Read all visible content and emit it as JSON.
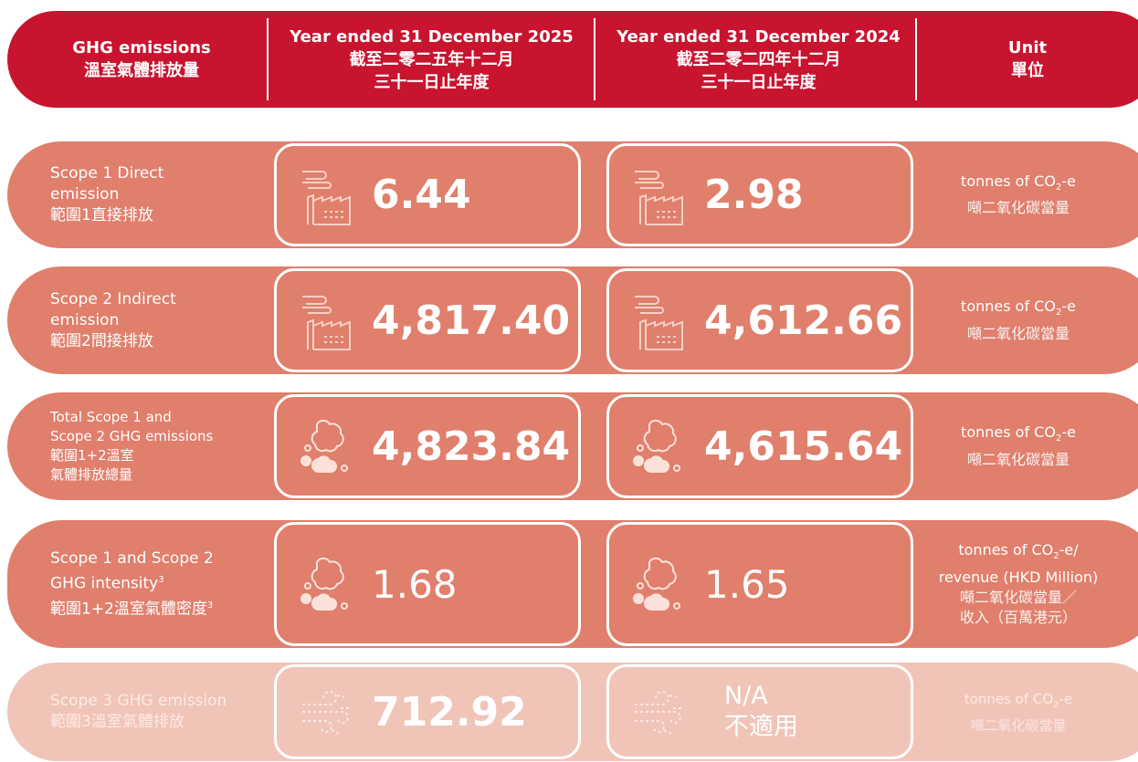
{
  "header": {
    "columns": [
      [
        "GHG emissions",
        "溫室氣體排放量"
      ],
      [
        "Year ended 31 December 2025",
        "截至二零二五年十二月",
        "三十一日止年度"
      ],
      [
        "Year ended 31 December 2024",
        "截至二零二四年十二月",
        "三十一日止年度"
      ],
      [
        "Unit",
        "單位"
      ]
    ]
  },
  "rows": [
    {
      "label": [
        {
          "text": "Scope 1 Direct"
        },
        {
          "text": "emission"
        },
        {
          "text": "範圍1直接排放"
        }
      ],
      "values": [
        [
          "6.44"
        ],
        [
          "2.98"
        ]
      ],
      "unit": [
        {
          "text": "tonnes of CO",
          "sub": "2",
          "post": "-e"
        },
        {
          "text": "噸二氧化碳當量"
        }
      ]
    },
    {
      "label": [
        {
          "text": "Scope 2 Indirect"
        },
        {
          "text": "emission"
        },
        {
          "text": "範圍2間接排放"
        }
      ],
      "values": [
        [
          "4,817.40"
        ],
        [
          "4,612.66"
        ]
      ],
      "unit": [
        {
          "text": "tonnes of CO",
          "sub": "2",
          "post": "-e"
        },
        {
          "text": "噸二氧化碳當量"
        }
      ]
    },
    {
      "label": [
        {
          "text": "Total  Scope 1 and"
        },
        {
          "text": "Scope 2 GHG emissions"
        },
        {
          "text": "範圍1+2溫室"
        },
        {
          "text": "氣體排放總量"
        }
      ],
      "values": [
        [
          "4,823.84"
        ],
        [
          "4,615.64"
        ]
      ],
      "unit": [
        {
          "text": "tonnes of CO",
          "sub": "2",
          "post": "-e"
        },
        {
          "text": "噸二氧化碳當量"
        }
      ]
    },
    {
      "label": [
        {
          "text": "Scope 1 and Scope 2"
        },
        {
          "text": "GHG intensity",
          "sup": "3"
        },
        {
          "text": "範圍1+2溫室氣體密度",
          "sup": "3"
        }
      ],
      "values": [
        [
          "1.68"
        ],
        [
          "1.65"
        ]
      ],
      "unit": [
        {
          "text": "tonnes of CO",
          "sub": "2",
          "post": "-e/"
        },
        {
          "text": "revenue (HKD Million)"
        },
        {
          "text": "噸二氧化碳當量／"
        },
        {
          "text": "收入（百萬港元）"
        }
      ]
    },
    {
      "label": [
        {
          "text": "Scope 3 GHG emission"
        },
        {
          "text": "範圍3溫室氣體排放"
        }
      ],
      "values": [
        [
          "712.92"
        ],
        [
          "N/A",
          "不適用"
        ]
      ],
      "unit": [
        {
          "text": "tonnes of CO",
          "sub": "2",
          "post": "-e"
        },
        {
          "text": "噸二氧化碳當量"
        }
      ]
    }
  ]
}
